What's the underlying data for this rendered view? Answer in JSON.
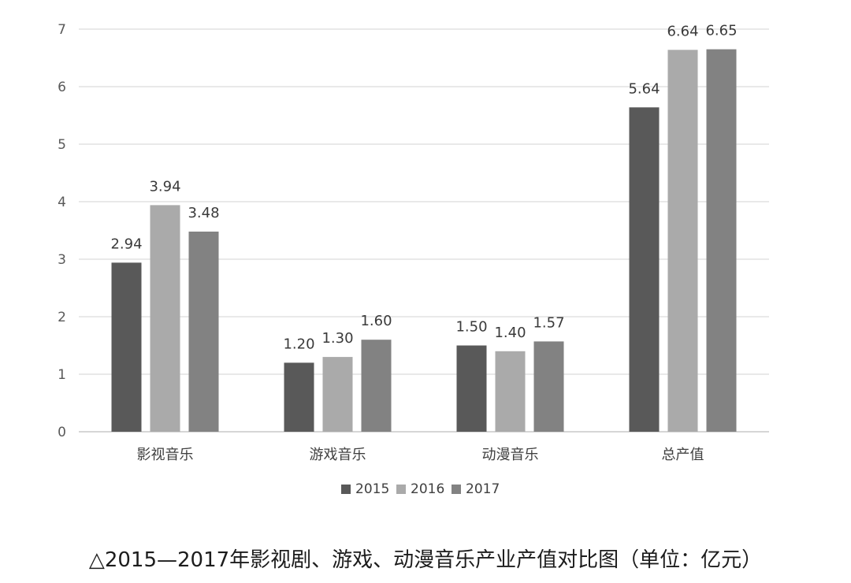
{
  "caption": "△2015—2017年影视剧、游戏、动漫音乐产业产值对比图（单位：亿元）",
  "chart_data": {
    "type": "bar",
    "categories": [
      "影视音乐",
      "游戏音乐",
      "动漫音乐",
      "总产值"
    ],
    "series": [
      {
        "name": "2015",
        "values": [
          2.94,
          1.2,
          1.5,
          5.64
        ],
        "labels": [
          "2.94",
          "1.20",
          "1.50",
          "5.64"
        ],
        "color": "#595959"
      },
      {
        "name": "2016",
        "values": [
          3.94,
          1.3,
          1.4,
          6.64
        ],
        "labels": [
          "3.94",
          "1.30",
          "1.40",
          "6.64"
        ],
        "color": "#aaaaaa"
      },
      {
        "name": "2017",
        "values": [
          3.48,
          1.6,
          1.57,
          6.65
        ],
        "labels": [
          "3.48",
          "1.60",
          "1.57",
          "6.65"
        ],
        "color": "#828282"
      }
    ],
    "yticks": [
      "0",
      "1",
      "2",
      "3",
      "4",
      "5",
      "6",
      "7"
    ],
    "ylim": [
      0,
      7
    ],
    "grid": true,
    "legend_position": "bottom"
  }
}
